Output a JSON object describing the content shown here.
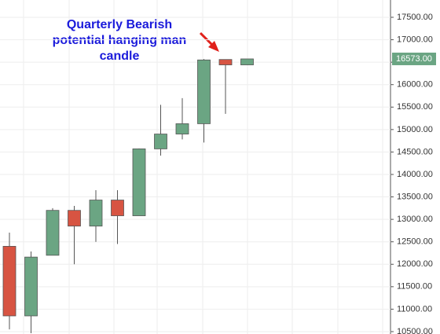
{
  "chart_data": {
    "type": "candlestick",
    "annotation": [
      "Quarterly Bearish",
      "potential hanging man",
      "candle"
    ],
    "open": [
      12400,
      10850,
      12200,
      13200,
      12850,
      13430,
      13080,
      14570,
      14900,
      15130,
      16560,
      16440
    ],
    "high": [
      12705,
      12285,
      13250,
      13300,
      13650,
      13650,
      14580,
      15550,
      15700,
      16570,
      16560,
      16573
    ],
    "low": [
      10550,
      10465,
      12200,
      12000,
      12500,
      12450,
      13080,
      14420,
      14780,
      14710,
      15350,
      16440
    ],
    "close": [
      10850,
      12160,
      13200,
      12850,
      13430,
      13080,
      14570,
      14900,
      15130,
      16550,
      16440,
      16573
    ],
    "up_color": "#6ba583",
    "down_color": "#d75442",
    "ylim": [
      10447,
      17885
    ],
    "yticks": [
      {
        "value": 10500,
        "label": "10500.00"
      },
      {
        "value": 11000,
        "label": "11000.00"
      },
      {
        "value": 11500,
        "label": "11500.00"
      },
      {
        "value": 12000,
        "label": "12000.00"
      },
      {
        "value": 12500,
        "label": "12500.00"
      },
      {
        "value": 13000,
        "label": "13000.00"
      },
      {
        "value": 13500,
        "label": "13500.00"
      },
      {
        "value": 14000,
        "label": "14000.00"
      },
      {
        "value": 14500,
        "label": "14500.00"
      },
      {
        "value": 15000,
        "label": "15000.00"
      },
      {
        "value": 15500,
        "label": "15500.00"
      },
      {
        "value": 16000,
        "label": "16000.00"
      },
      {
        "value": 16500,
        "label": "16500.00"
      },
      {
        "value": 17000,
        "label": "17000.00"
      },
      {
        "value": 17500,
        "label": "17500.00"
      }
    ],
    "last_price": {
      "value": 16573,
      "label": "16573.00"
    },
    "grid": true
  }
}
